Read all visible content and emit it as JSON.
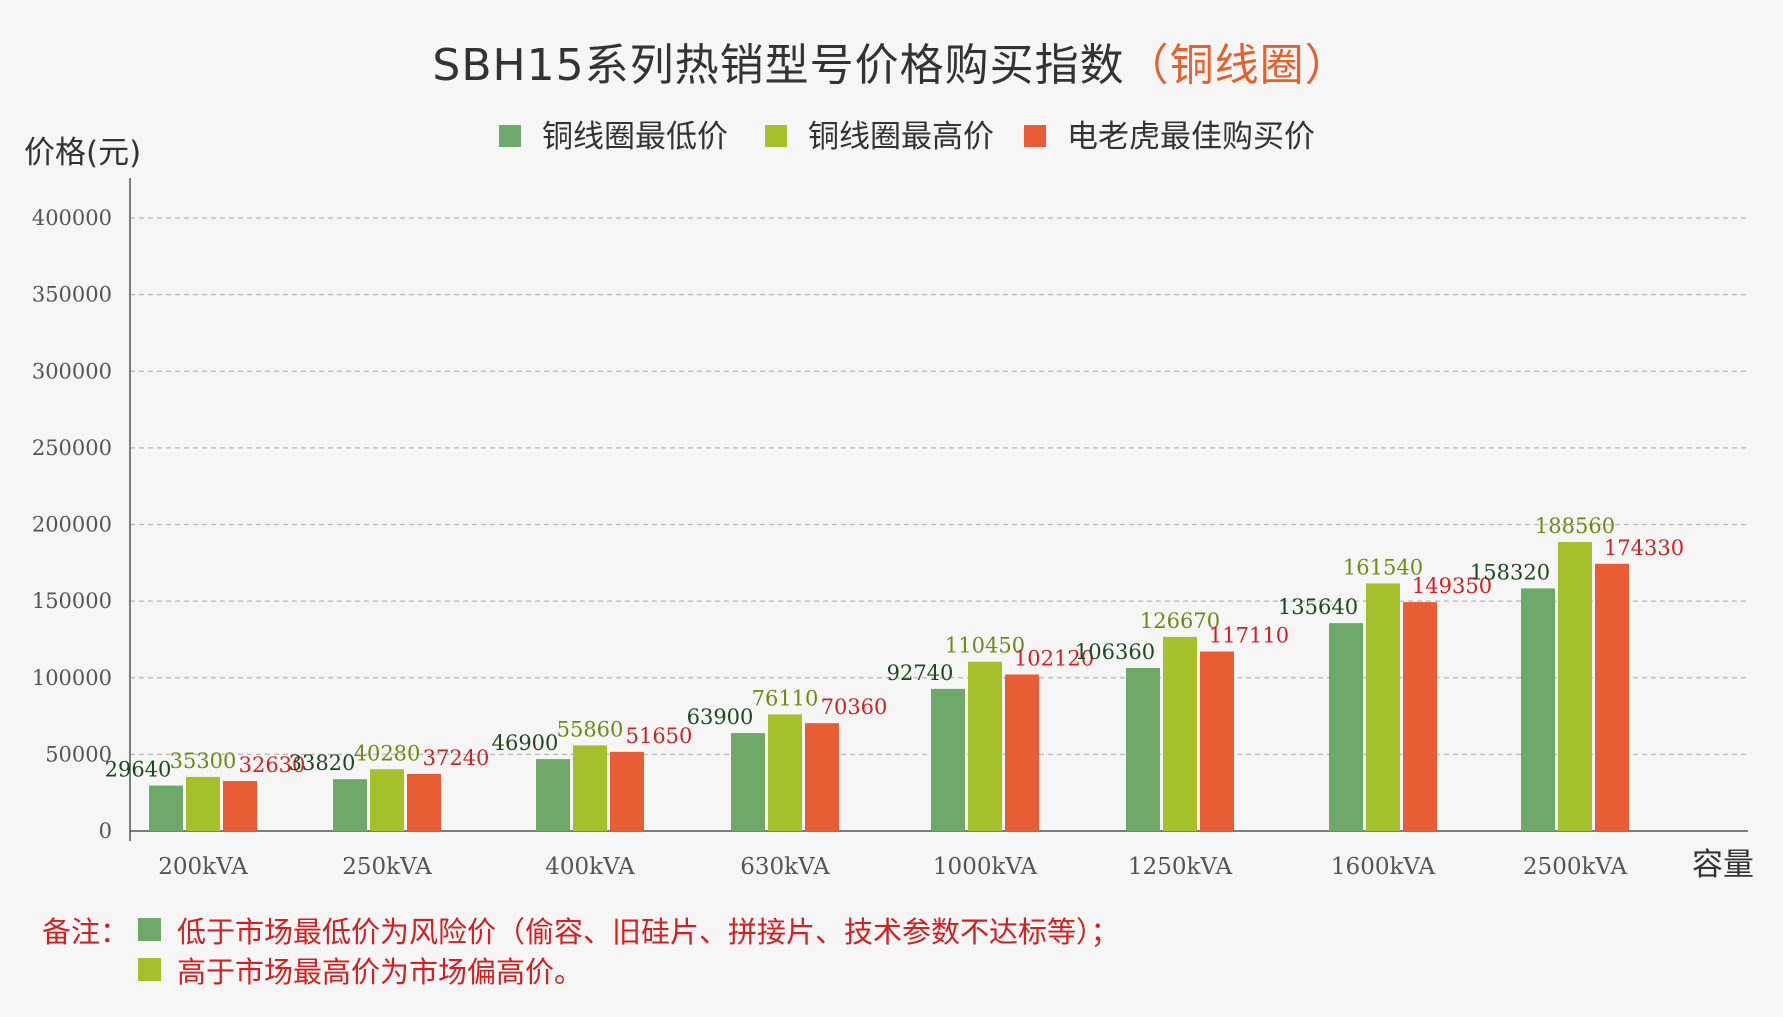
{
  "title": {
    "main": "SBH15系列热销型号价格购买指数",
    "accent": "（铜线圈）",
    "accent_color": "#e8612c"
  },
  "legend": [
    {
      "label": "铜线圈最低价",
      "color": "#6fa96a"
    },
    {
      "label": "铜线圈最高价",
      "color": "#a4c12c"
    },
    {
      "label": "电老虎最佳购买价",
      "color": "#e85d33"
    }
  ],
  "y_axis_caption": "价格(元)",
  "x_axis_caption": "容量",
  "label_colors": {
    "min": "#1c4a1c",
    "max": "#6f8a14",
    "best": "#d42020"
  },
  "notes": {
    "prefix": "备注：",
    "lines": [
      {
        "text": "低于市场最低价为风险价（偷容、旧硅片、拼接片、技术参数不达标等）；",
        "color": "#6fa96a"
      },
      {
        "text": "高于市场最高价为市场偏高价。",
        "color": "#a4c12c"
      }
    ]
  },
  "chart_data": {
    "type": "bar",
    "title": "SBH15系列热销型号价格购买指数（铜线圈）",
    "xlabel": "容量",
    "ylabel": "价格(元)",
    "ylim": [
      0,
      400000
    ],
    "yticks": [
      0,
      50000,
      100000,
      150000,
      200000,
      250000,
      300000,
      350000,
      400000
    ],
    "grid": true,
    "legend_position": "top",
    "categories": [
      "200kVA",
      "250kVA",
      "400kVA",
      "630kVA",
      "1000kVA",
      "1250kVA",
      "1600kVA",
      "2500kVA"
    ],
    "series": [
      {
        "name": "铜线圈最低价",
        "values": [
          29640,
          33820,
          46900,
          63900,
          92740,
          106360,
          135640,
          158320
        ]
      },
      {
        "name": "铜线圈最高价",
        "values": [
          35300,
          40280,
          55860,
          76110,
          110450,
          126670,
          161540,
          188560
        ]
      },
      {
        "name": "电老虎最佳购买价",
        "values": [
          32630,
          37240,
          51650,
          70360,
          102120,
          117110,
          149350,
          174330
        ]
      }
    ]
  }
}
